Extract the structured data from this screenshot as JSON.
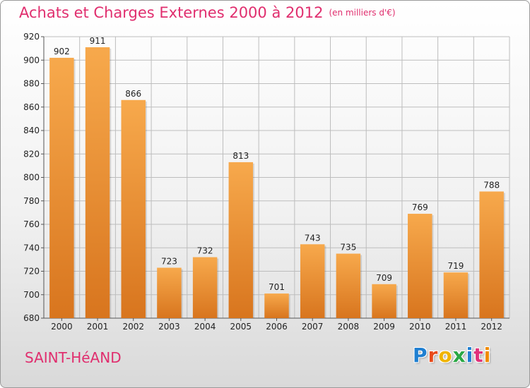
{
  "header": {
    "title": "Achats et Charges Externes 2000 à 2012",
    "subtitle": "(en milliers d'€)"
  },
  "footer": {
    "commune": "SAINT-HéAND",
    "logo_text": "Proxiti",
    "logo_colors": [
      "#1f7fd1",
      "#e84a1a",
      "#f0b400",
      "#2aa845",
      "#1f7fd1",
      "#e0317a",
      "#f08a00"
    ]
  },
  "colors": {
    "title": "#e02e6e",
    "bar_light": "#f7a94c",
    "bar_dark": "#d8751e",
    "grid": "#bdbdbd",
    "text": "#222222"
  },
  "chart_data": {
    "type": "bar",
    "title": "Achats et Charges Externes 2000 à 2012",
    "subtitle": "(en milliers d'€)",
    "categories": [
      "2000",
      "2001",
      "2002",
      "2003",
      "2004",
      "2005",
      "2006",
      "2007",
      "2008",
      "2009",
      "2010",
      "2011",
      "2012"
    ],
    "values": [
      902,
      911,
      866,
      723,
      732,
      813,
      701,
      743,
      735,
      709,
      769,
      719,
      788
    ],
    "ylim": [
      680,
      920
    ],
    "yticks": [
      680,
      700,
      720,
      740,
      760,
      780,
      800,
      820,
      840,
      860,
      880,
      900,
      920
    ],
    "xlabel": "",
    "ylabel": "",
    "grid": true,
    "data_labels": true
  }
}
